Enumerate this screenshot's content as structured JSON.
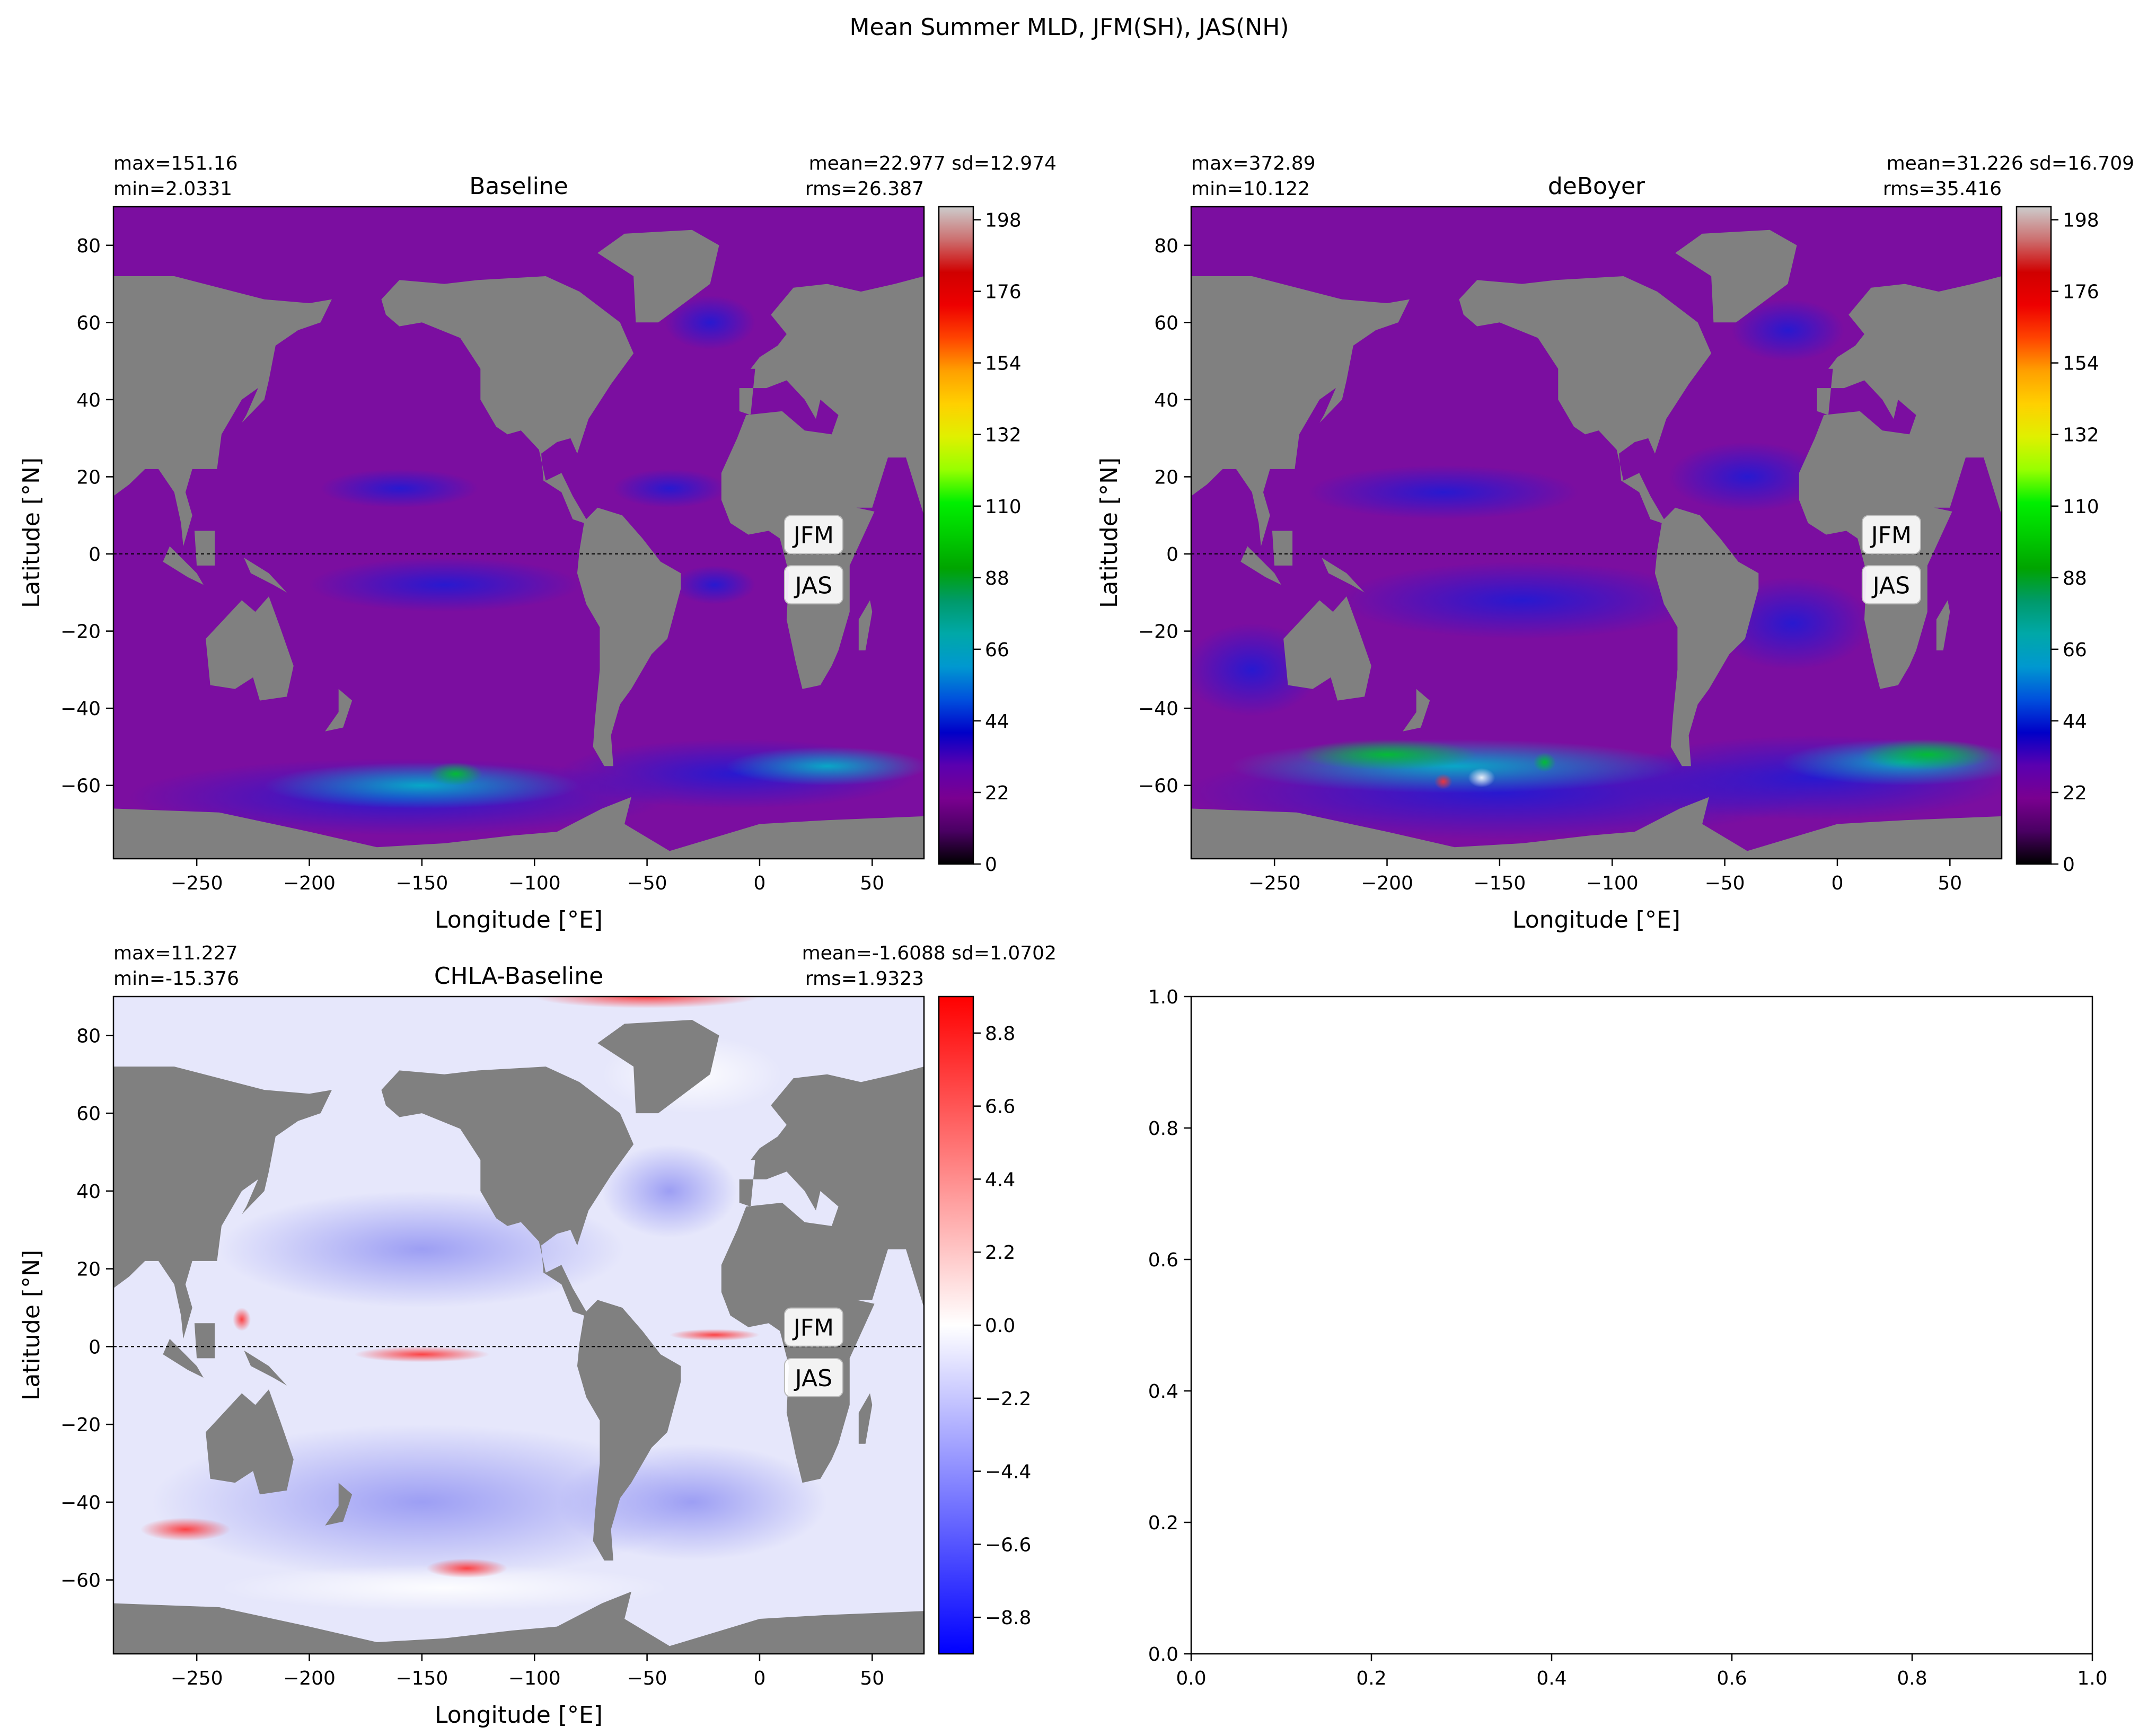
{
  "suptitle": "Mean Summer MLD, JFM(SH), JAS(NH)",
  "chart_data": [
    {
      "type": "heatmap",
      "title": "Baseline",
      "stats": {
        "max": "max=151.16",
        "min": "min=2.0331",
        "mean_sd": "mean=22.977 sd=12.974",
        "rms": "rms=26.387"
      },
      "xlabel": "Longitude [°E]",
      "ylabel": "Latitude [°N]",
      "xlim": [
        -287,
        73
      ],
      "ylim": [
        -79,
        90
      ],
      "xticks": [
        -250,
        -200,
        -150,
        -100,
        -50,
        0,
        50
      ],
      "yticks": [
        -60,
        -40,
        -20,
        0,
        20,
        40,
        60,
        80
      ],
      "season_labels": [
        "JFM",
        "JAS"
      ],
      "equator_line": true,
      "colormap": "nipy_spectral",
      "colorbar": {
        "min": 0,
        "max": 202,
        "ticks": [
          0,
          22,
          44,
          66,
          88,
          110,
          132,
          154,
          176,
          198
        ]
      }
    },
    {
      "type": "heatmap",
      "title": "deBoyer",
      "stats": {
        "max": "max=372.89",
        "min": "min=10.122",
        "mean_sd": "mean=31.226 sd=16.709",
        "rms": "rms=35.416"
      },
      "xlabel": "Longitude [°E]",
      "ylabel": "Latitude [°N]",
      "xlim": [
        -287,
        73
      ],
      "ylim": [
        -79,
        90
      ],
      "xticks": [
        -250,
        -200,
        -150,
        -100,
        -50,
        0,
        50
      ],
      "yticks": [
        -60,
        -40,
        -20,
        0,
        20,
        40,
        60,
        80
      ],
      "season_labels": [
        "JFM",
        "JAS"
      ],
      "equator_line": true,
      "colormap": "nipy_spectral",
      "colorbar": {
        "min": 0,
        "max": 202,
        "ticks": [
          0,
          22,
          44,
          66,
          88,
          110,
          132,
          154,
          176,
          198
        ]
      }
    },
    {
      "type": "heatmap",
      "title": "CHLA-Baseline",
      "stats": {
        "max": "max=11.227",
        "min": "min=-15.376",
        "mean_sd": "mean=-1.6088 sd=1.0702",
        "rms": "rms=1.9323"
      },
      "xlabel": "Longitude [°E]",
      "ylabel": "Latitude [°N]",
      "xlim": [
        -287,
        73
      ],
      "ylim": [
        -79,
        90
      ],
      "xticks": [
        -250,
        -200,
        -150,
        -100,
        -50,
        0,
        50
      ],
      "yticks": [
        -60,
        -40,
        -20,
        0,
        20,
        40,
        60,
        80
      ],
      "season_labels": [
        "JFM",
        "JAS"
      ],
      "equator_line": true,
      "colormap": "bwr",
      "colorbar": {
        "min": -9.9,
        "max": 9.9,
        "ticks": [
          -8.8,
          -6.6,
          -4.4,
          -2.2,
          0.0,
          2.2,
          4.4,
          6.6,
          8.8
        ]
      }
    },
    {
      "type": "line",
      "title": "",
      "xlim": [
        0,
        1
      ],
      "ylim": [
        0,
        1
      ],
      "xticks": [
        0.0,
        0.2,
        0.4,
        0.6,
        0.8,
        1.0
      ],
      "yticks": [
        0.0,
        0.2,
        0.4,
        0.6,
        0.8,
        1.0
      ],
      "series": []
    }
  ],
  "colors": {
    "land": "#808080",
    "background": "#ffffff",
    "axes": "#000000"
  }
}
